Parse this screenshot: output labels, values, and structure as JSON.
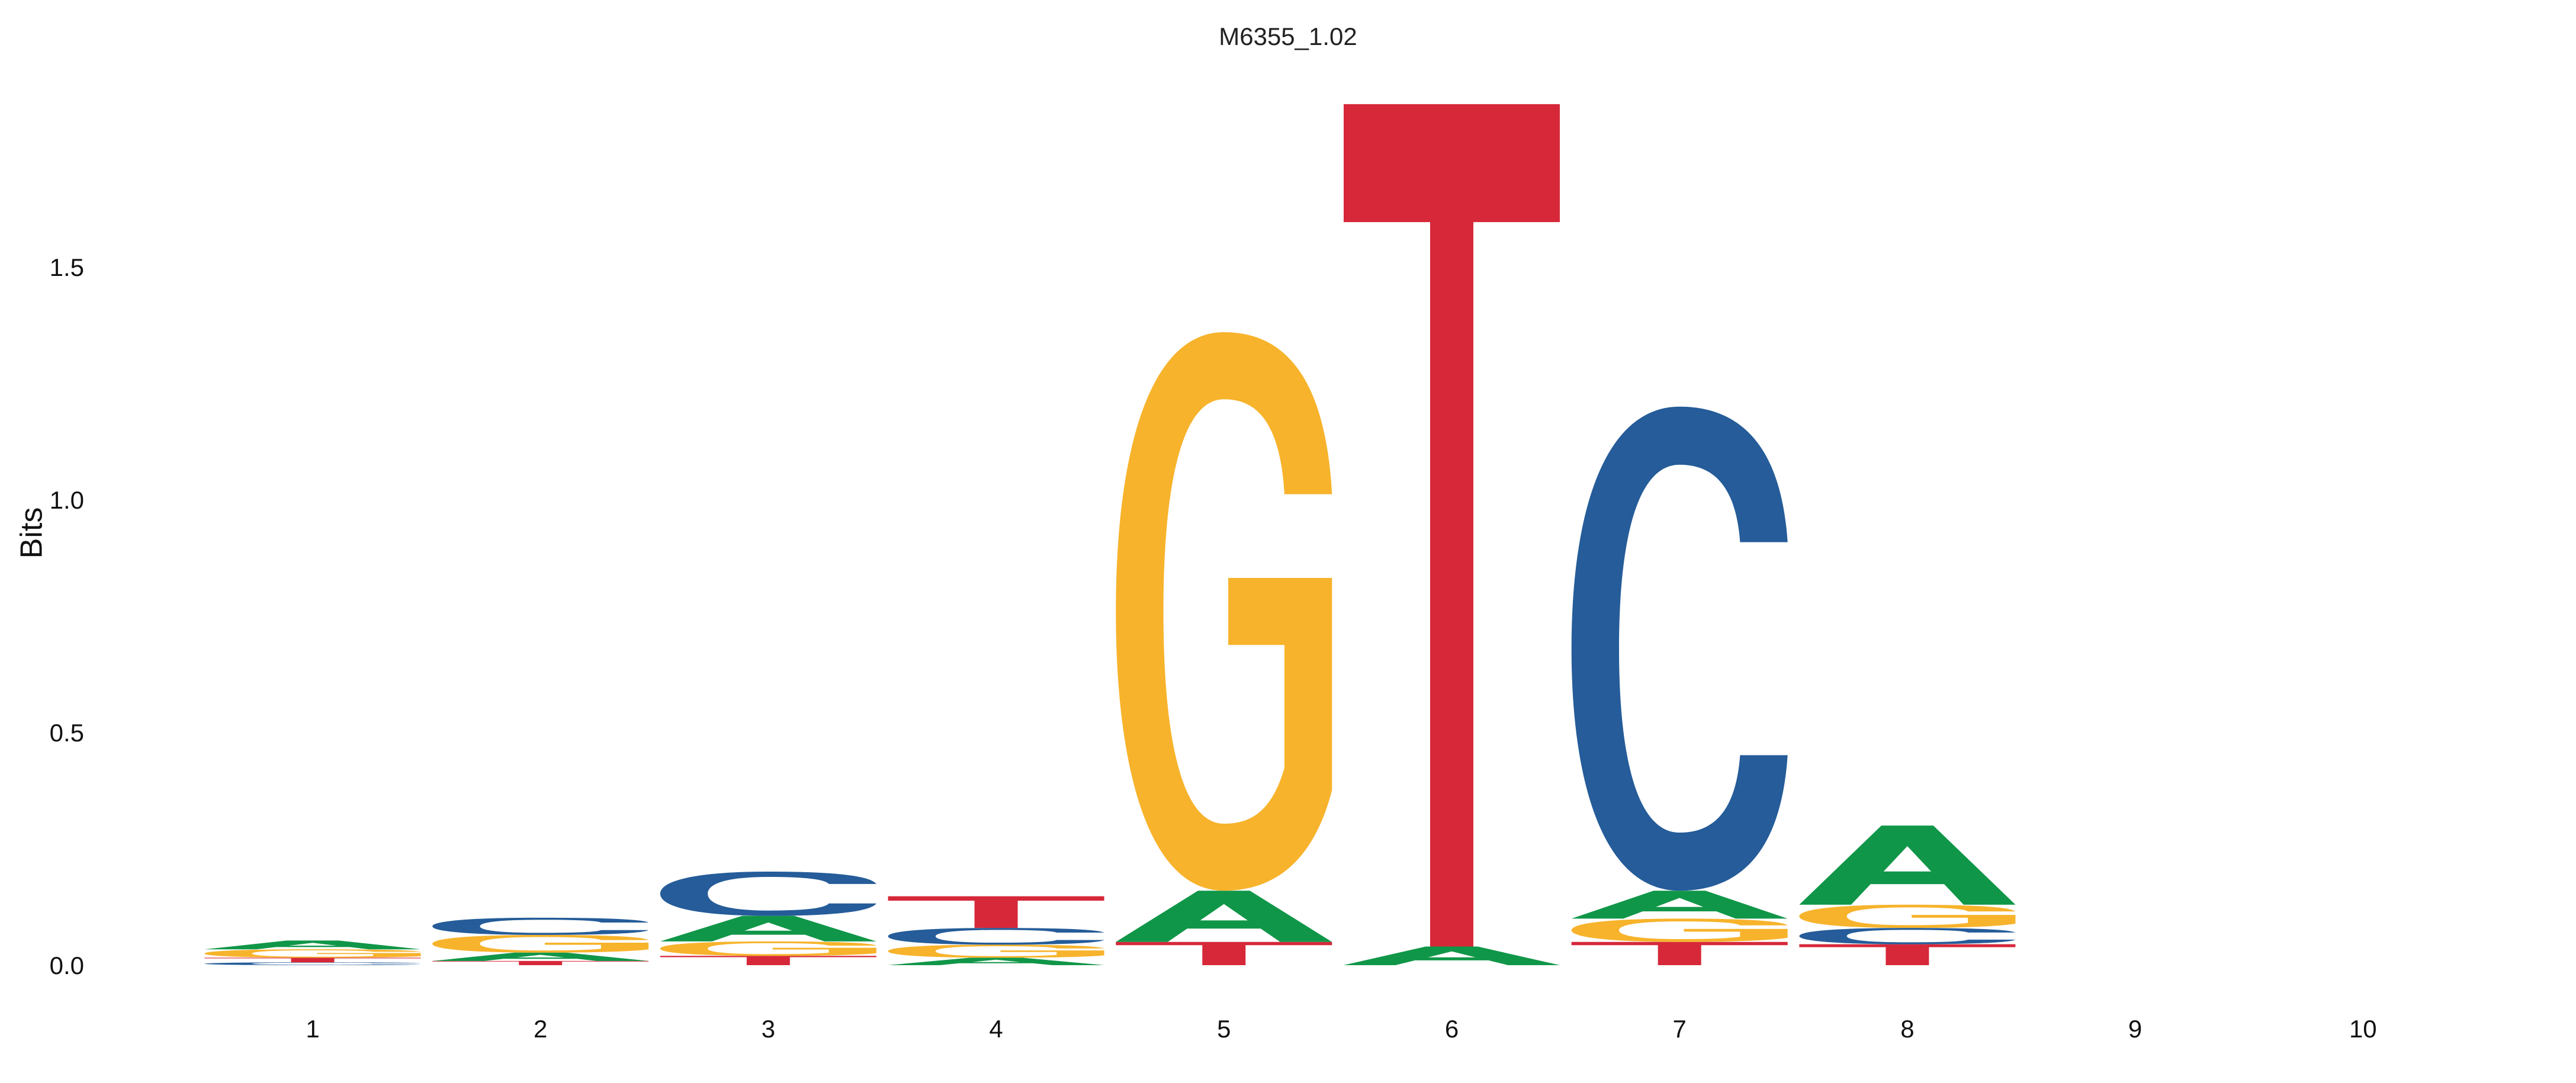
{
  "chart_data": {
    "type": "sequence-logo",
    "title": "M6355_1.02",
    "xlabel": "",
    "ylabel": "Bits",
    "ylim": [
      0,
      1.86
    ],
    "yticks": [
      "0.0",
      "0.5",
      "1.0",
      "1.5"
    ],
    "ytick_values": [
      0,
      0.5,
      1.0,
      1.5
    ],
    "positions": [
      "1",
      "2",
      "3",
      "4",
      "5",
      "6",
      "7",
      "8",
      "9",
      "10"
    ],
    "grid": false,
    "colors": {
      "A": "#109648",
      "C": "#255C99",
      "G": "#F7B32B",
      "T": "#D62839"
    },
    "stacks": [
      [
        {
          "base": "C",
          "bits": 0.006
        },
        {
          "base": "T",
          "bits": 0.01
        },
        {
          "base": "G",
          "bits": 0.018
        },
        {
          "base": "A",
          "bits": 0.019
        }
      ],
      [
        {
          "base": "T",
          "bits": 0.009
        },
        {
          "base": "A",
          "bits": 0.018
        },
        {
          "base": "G",
          "bits": 0.038
        },
        {
          "base": "C",
          "bits": 0.037
        }
      ],
      [
        {
          "base": "T",
          "bits": 0.02
        },
        {
          "base": "G",
          "bits": 0.031
        },
        {
          "base": "A",
          "bits": 0.055
        },
        {
          "base": "C",
          "bits": 0.095
        }
      ],
      [
        {
          "base": "A",
          "bits": 0.016
        },
        {
          "base": "G",
          "bits": 0.028
        },
        {
          "base": "C",
          "bits": 0.036
        },
        {
          "base": "T",
          "bits": 0.068
        }
      ],
      [
        {
          "base": "T",
          "bits": 0.05
        },
        {
          "base": "A",
          "bits": 0.11
        },
        {
          "base": "G",
          "bits": 1.2
        }
      ],
      [
        {
          "base": "A",
          "bits": 0.04
        },
        {
          "base": "T",
          "bits": 1.81
        }
      ],
      [
        {
          "base": "T",
          "bits": 0.05
        },
        {
          "base": "G",
          "bits": 0.05
        },
        {
          "base": "A",
          "bits": 0.06
        },
        {
          "base": "C",
          "bits": 1.04
        }
      ],
      [
        {
          "base": "T",
          "bits": 0.045
        },
        {
          "base": "C",
          "bits": 0.035
        },
        {
          "base": "G",
          "bits": 0.05
        },
        {
          "base": "A",
          "bits": 0.17
        }
      ],
      [],
      []
    ]
  }
}
